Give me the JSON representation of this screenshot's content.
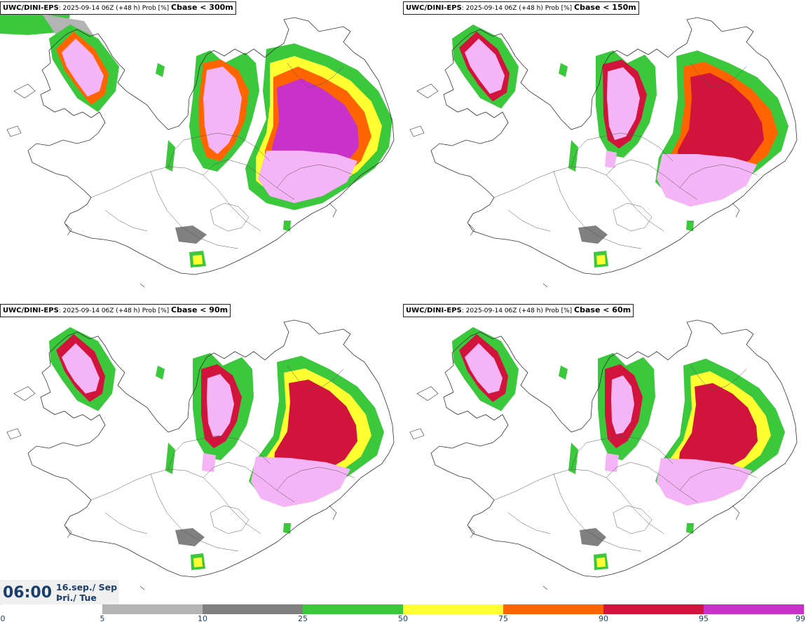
{
  "panels": [
    {
      "model": "UWC/DINI-EPS",
      "run_info": ": 2025-09-14 06Z (+48 h) Prob [%]",
      "threshold": "Cbase < 300m"
    },
    {
      "model": "UWC/DINI-EPS",
      "run_info": ": 2025-09-14 06Z (+48 h) Prob [%]",
      "threshold": "Cbase < 150m"
    },
    {
      "model": "UWC/DINI-EPS",
      "run_info": ": 2025-09-14 06Z (+48 h) Prob [%]",
      "threshold": "Cbase < 90m"
    },
    {
      "model": "UWC/DINI-EPS",
      "run_info": ": 2025-09-14 06Z (+48 h) Prob [%]",
      "threshold": "Cbase < 60m"
    }
  ],
  "valid_time": {
    "clock": "06:00",
    "date_line1": "16.sep./ Sep",
    "date_line2": "Þri./ Tue"
  },
  "legend": {
    "labels": [
      "0",
      "5",
      "10",
      "25",
      "50",
      "75",
      "90",
      "95",
      "99"
    ],
    "colors": [
      "#ffffff",
      "#b4b4b4",
      "#808080",
      "#3cc83c",
      "#ffff32",
      "#ff6400",
      "#d2143c",
      "#c832c8",
      "#f5b4f5"
    ]
  },
  "map_colors": {
    "gray_light": "#b4b4b4",
    "gray_dark": "#808080",
    "green": "#3cc83c",
    "yellow": "#ffff32",
    "orange": "#ff6400",
    "red": "#d2143c",
    "magenta": "#c832c8",
    "pink": "#f5b4f5",
    "coast": "#333333"
  }
}
